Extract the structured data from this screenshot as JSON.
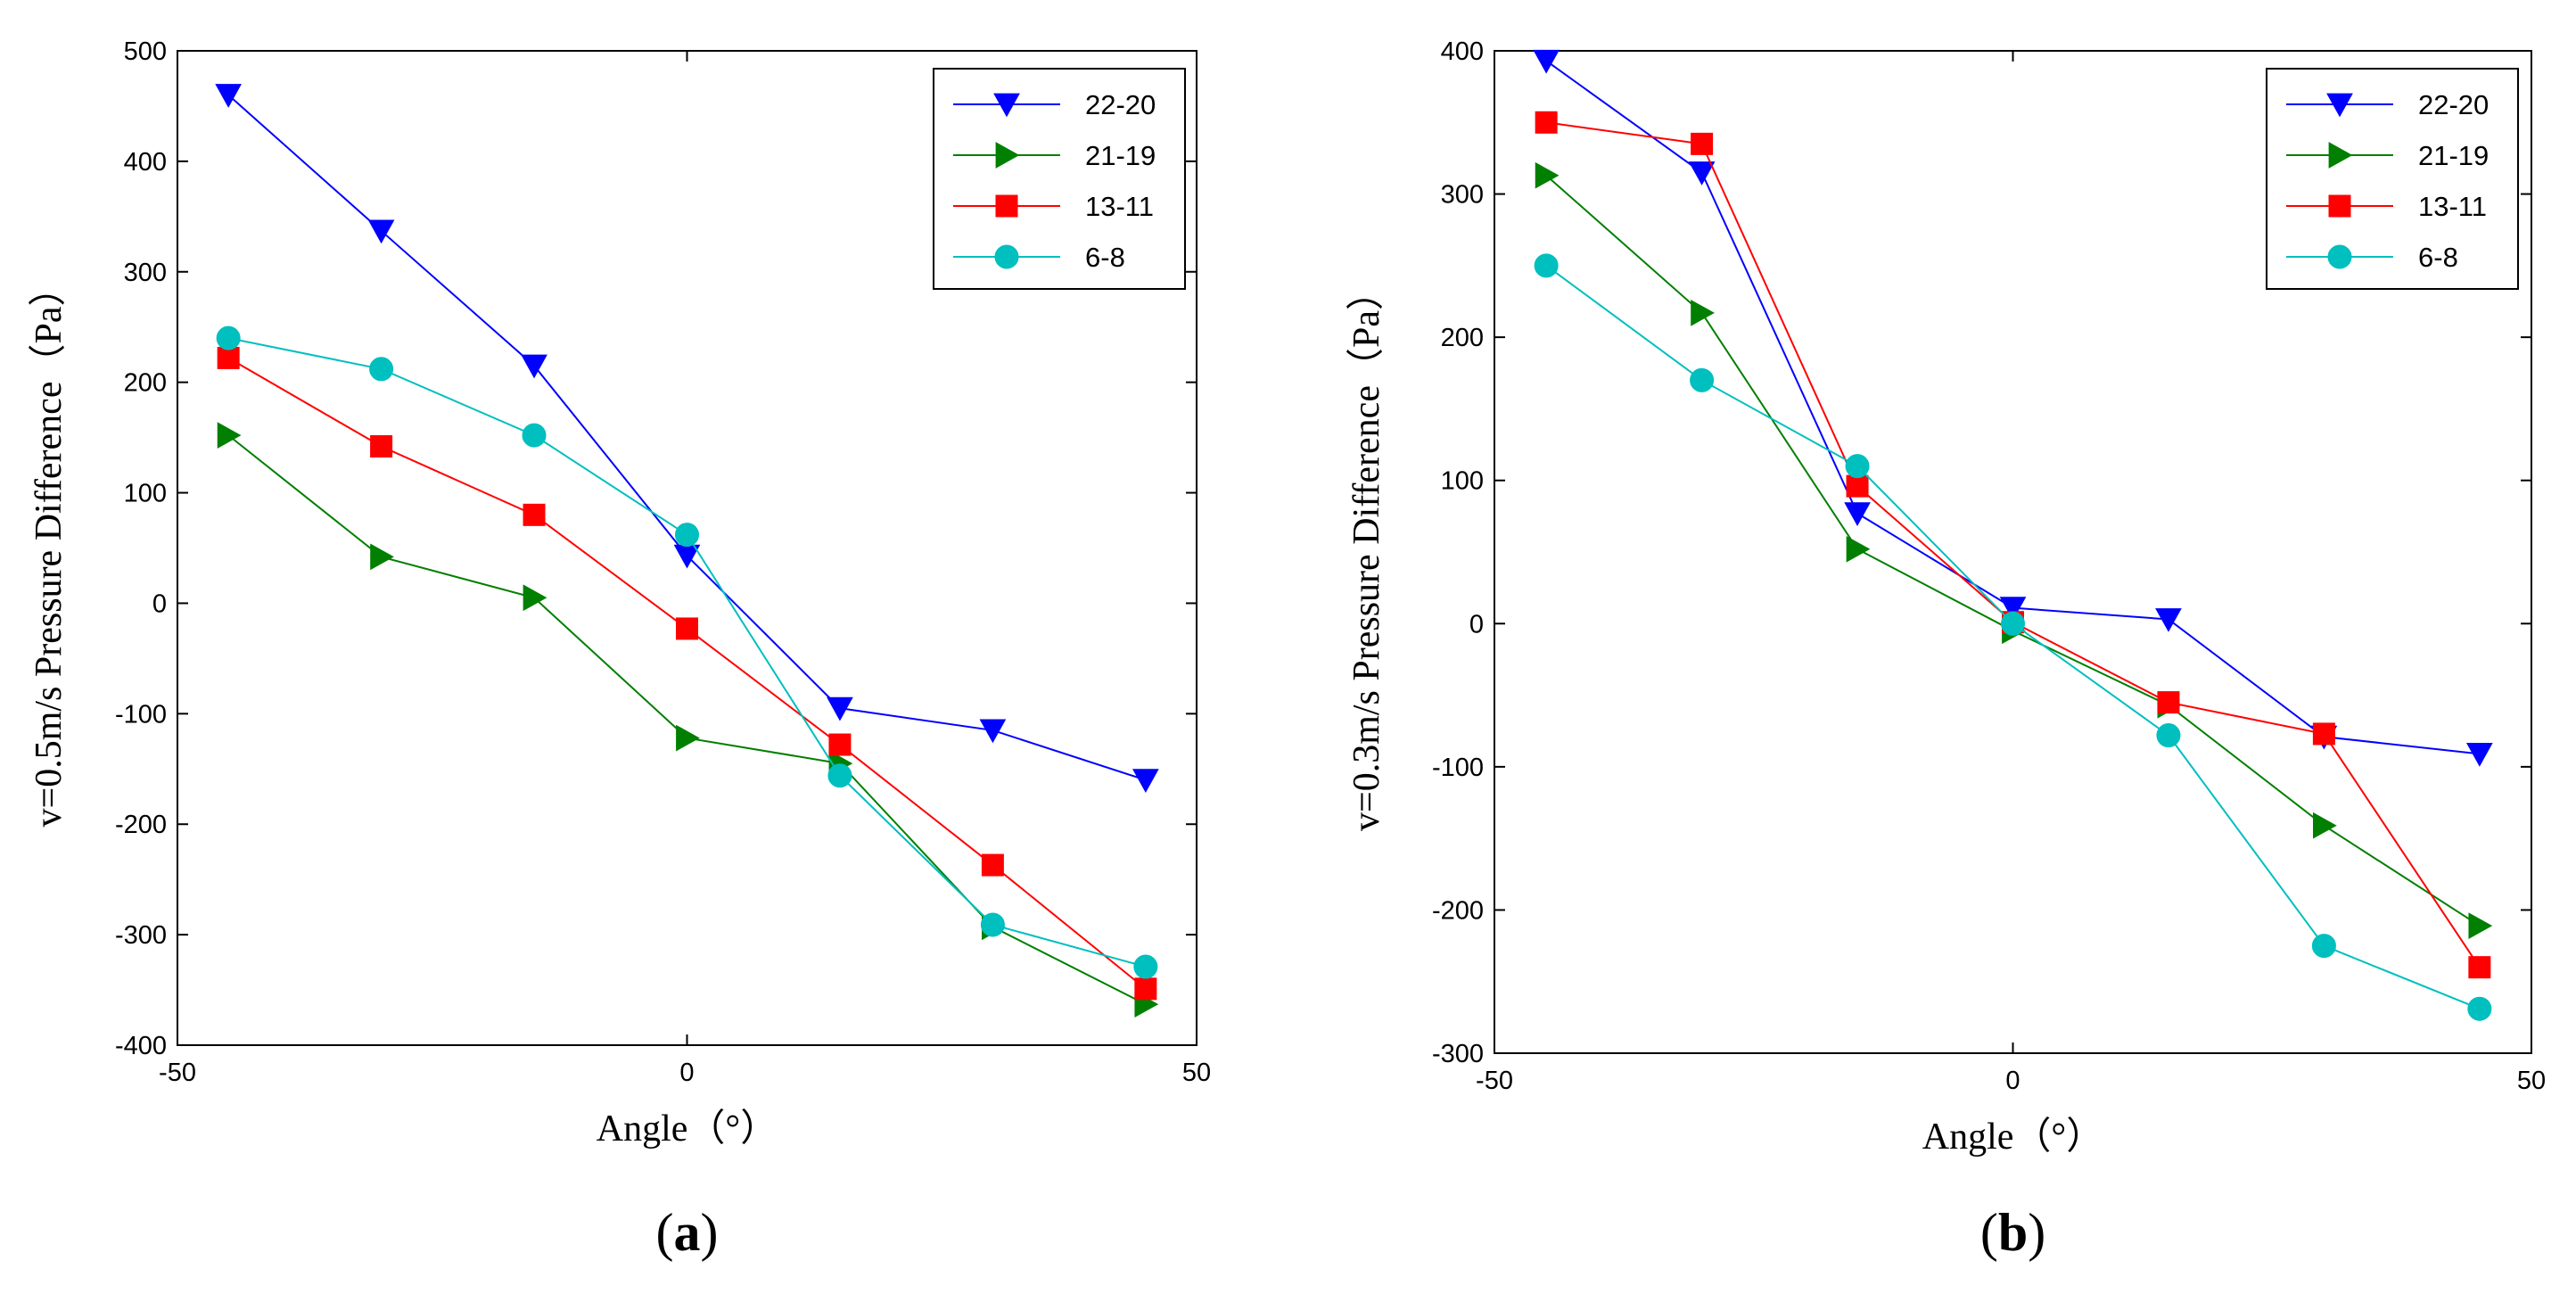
{
  "chart_data": [
    {
      "type": "line",
      "panel_label": "a",
      "xlabel": "Angle（°）",
      "ylabel": "v=0.5m/s  Pressure Difference（Pa）",
      "xlim": [
        -50,
        50
      ],
      "ylim": [
        -400,
        500
      ],
      "xticks": [
        -50,
        0,
        50
      ],
      "yticks": [
        -400,
        -300,
        -200,
        -100,
        0,
        100,
        200,
        300,
        400,
        500
      ],
      "legend_position": "top-right",
      "x": [
        -45,
        -30,
        -15,
        0,
        15,
        30,
        45
      ],
      "series": [
        {
          "name": "22-20",
          "color": "#0000ff",
          "marker": "triangle-down",
          "values": [
            460,
            337,
            215,
            43,
            -95,
            -115,
            -160
          ]
        },
        {
          "name": "21-19",
          "color": "#007f00",
          "marker": "triangle-right",
          "values": [
            152,
            42,
            5,
            -122,
            -145,
            -293,
            -363
          ]
        },
        {
          "name": "13-11",
          "color": "#ff0000",
          "marker": "square",
          "values": [
            222,
            142,
            80,
            -23,
            -128,
            -237,
            -349
          ]
        },
        {
          "name": "6-8",
          "color": "#00bfbf",
          "marker": "circle",
          "values": [
            240,
            212,
            152,
            62,
            -156,
            -291,
            -329
          ]
        }
      ]
    },
    {
      "type": "line",
      "panel_label": "b",
      "xlabel": "Angle（°）",
      "ylabel": "v=0.3m/s  Pressure Difference（Pa）",
      "xlim": [
        -50,
        50
      ],
      "ylim": [
        -300,
        400
      ],
      "xticks": [
        -50,
        0,
        50
      ],
      "yticks": [
        -300,
        -200,
        -100,
        0,
        100,
        200,
        300,
        400
      ],
      "legend_position": "top-right",
      "x": [
        -45,
        -30,
        -15,
        0,
        15,
        30,
        45
      ],
      "series": [
        {
          "name": "22-20",
          "color": "#0000ff",
          "marker": "triangle-down",
          "values": [
            393,
            315,
            77,
            11,
            3,
            -79,
            -91
          ]
        },
        {
          "name": "21-19",
          "color": "#007f00",
          "marker": "triangle-right",
          "values": [
            313,
            217,
            52,
            -5,
            -57,
            -141,
            -211
          ]
        },
        {
          "name": "13-11",
          "color": "#ff0000",
          "marker": "square",
          "values": [
            350,
            335,
            96,
            1,
            -55,
            -77,
            -240
          ]
        },
        {
          "name": "6-8",
          "color": "#00bfbf",
          "marker": "circle",
          "values": [
            250,
            170,
            110,
            0,
            -78,
            -225,
            -269
          ]
        }
      ]
    }
  ]
}
